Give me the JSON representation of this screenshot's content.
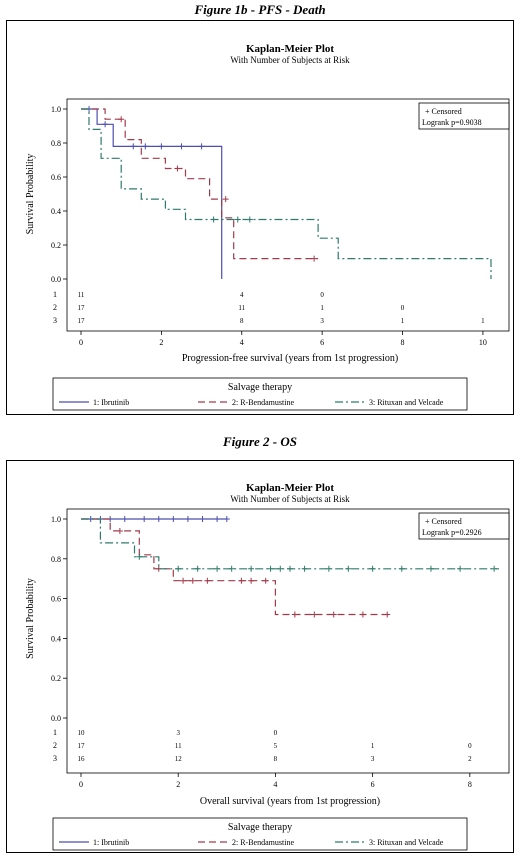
{
  "chart_data": [
    {
      "type": "line",
      "figure_caption": "Figure 1b - PFS - Death",
      "title": "Kaplan-Meier Plot",
      "subtitle": "With Number of Subjects at Risk",
      "xlabel": "Progression-free survival (years from 1st progression)",
      "ylabel": "Survival Probability",
      "xlim": [
        0,
        10.4
      ],
      "ylim": [
        0,
        1.0
      ],
      "xticks": [
        "0",
        "2",
        "4",
        "6",
        "8",
        "10"
      ],
      "yticks": [
        "0.0",
        "0.2",
        "0.4",
        "0.6",
        "0.8",
        "1.0"
      ],
      "censored_label": "+ Censored",
      "logrank_label": "Logrank p=0.9038",
      "legend_title": "Salvage therapy",
      "risk_times": [
        0,
        4,
        6,
        8,
        10
      ],
      "risk_table": [
        {
          "id": "1",
          "counts": [
            "11",
            "4",
            "0",
            "",
            ""
          ]
        },
        {
          "id": "2",
          "counts": [
            "17",
            "11",
            "1",
            "0",
            ""
          ]
        },
        {
          "id": "3",
          "counts": [
            "17",
            "8",
            "3",
            "1",
            "1"
          ]
        }
      ],
      "series": [
        {
          "name": "1: Ibrutinib",
          "color": "#4b4fb0",
          "dash": "solid",
          "x": [
            0,
            0.4,
            0.4,
            0.8,
            0.8,
            3.5,
            3.5
          ],
          "y": [
            1.0,
            1.0,
            0.91,
            0.91,
            0.78,
            0.78,
            0.0
          ],
          "censor_x": [
            0.2,
            0.6,
            1.3,
            1.6,
            2.0,
            2.5,
            3.0
          ],
          "censor_y": [
            1.0,
            0.91,
            0.78,
            0.78,
            0.78,
            0.78,
            0.78
          ]
        },
        {
          "name": "2: R-Bendamustine",
          "color": "#a33a4a",
          "dash": "long",
          "x": [
            0,
            0.6,
            0.6,
            1.1,
            1.1,
            1.5,
            1.5,
            2.1,
            2.1,
            2.6,
            2.6,
            3.2,
            3.2,
            3.5,
            3.5,
            3.8,
            3.8,
            5.9
          ],
          "y": [
            1.0,
            1.0,
            0.94,
            0.94,
            0.82,
            0.82,
            0.71,
            0.71,
            0.65,
            0.65,
            0.59,
            0.59,
            0.47,
            0.47,
            0.36,
            0.36,
            0.12,
            0.12
          ],
          "censor_x": [
            1.0,
            2.4,
            3.6,
            5.8
          ],
          "censor_y": [
            0.94,
            0.65,
            0.47,
            0.12
          ]
        },
        {
          "name": "3: Rituxan and Velcade",
          "color": "#2f7a6a",
          "dash": "dashdot",
          "x": [
            0,
            0.2,
            0.2,
            0.5,
            0.5,
            1.0,
            1.0,
            1.5,
            1.5,
            2.1,
            2.1,
            2.6,
            2.6,
            5.9,
            5.9,
            6.4,
            6.4,
            10.2,
            10.2
          ],
          "y": [
            1.0,
            1.0,
            0.88,
            0.88,
            0.71,
            0.71,
            0.53,
            0.53,
            0.47,
            0.47,
            0.41,
            0.41,
            0.35,
            0.35,
            0.24,
            0.24,
            0.12,
            0.12,
            0.0
          ],
          "censor_x": [
            3.3,
            3.9,
            4.2
          ],
          "censor_y": [
            0.35,
            0.35,
            0.35
          ]
        }
      ]
    },
    {
      "type": "line",
      "figure_caption": "Figure 2 - OS",
      "title": "Kaplan-Meier Plot",
      "subtitle": "With Number of Subjects at Risk",
      "xlabel": "Overall survival (years from 1st progression)",
      "ylabel": "Survival Probability",
      "xlim": [
        0,
        8.6
      ],
      "ylim": [
        0,
        1.0
      ],
      "xticks": [
        "0",
        "2",
        "4",
        "6",
        "8"
      ],
      "yticks": [
        "0.0",
        "0.2",
        "0.4",
        "0.6",
        "0.8",
        "1.0"
      ],
      "censored_label": "+ Censored",
      "logrank_label": "Logrank p=0.2926",
      "legend_title": "Salvage therapy",
      "risk_times": [
        0,
        2,
        4,
        6,
        8
      ],
      "risk_table": [
        {
          "id": "1",
          "counts": [
            "10",
            "3",
            "0",
            "",
            ""
          ]
        },
        {
          "id": "2",
          "counts": [
            "17",
            "11",
            "5",
            "1",
            "0"
          ]
        },
        {
          "id": "3",
          "counts": [
            "16",
            "12",
            "8",
            "3",
            "2"
          ]
        }
      ],
      "series": [
        {
          "name": "1: Ibrutinib",
          "color": "#4b4fb0",
          "dash": "solid",
          "x": [
            0,
            3.0
          ],
          "y": [
            1.0,
            1.0
          ],
          "censor_x": [
            0.2,
            0.4,
            0.6,
            0.9,
            1.3,
            1.6,
            1.9,
            2.2,
            2.5,
            2.8,
            3.0
          ],
          "censor_y": [
            1.0,
            1.0,
            1.0,
            1.0,
            1.0,
            1.0,
            1.0,
            1.0,
            1.0,
            1.0,
            1.0
          ]
        },
        {
          "name": "2: R-Bendamustine",
          "color": "#a33a4a",
          "dash": "long",
          "x": [
            0,
            0.6,
            0.6,
            1.2,
            1.2,
            1.5,
            1.5,
            1.9,
            1.9,
            4.0,
            4.0,
            6.4
          ],
          "y": [
            1.0,
            1.0,
            0.94,
            0.94,
            0.82,
            0.82,
            0.75,
            0.75,
            0.69,
            0.69,
            0.52,
            0.52
          ],
          "censor_x": [
            0.8,
            1.6,
            2.1,
            2.3,
            2.6,
            3.3,
            3.5,
            3.8,
            4.4,
            4.8,
            5.2,
            5.8,
            6.3
          ],
          "censor_y": [
            0.94,
            0.75,
            0.69,
            0.69,
            0.69,
            0.69,
            0.69,
            0.69,
            0.52,
            0.52,
            0.52,
            0.52,
            0.52
          ]
        },
        {
          "name": "3: Rituxan and Velcade",
          "color": "#2f7a6a",
          "dash": "dashdot",
          "x": [
            0,
            0.4,
            0.4,
            1.1,
            1.1,
            1.6,
            1.6,
            8.6
          ],
          "y": [
            1.0,
            1.0,
            0.88,
            0.88,
            0.81,
            0.81,
            0.75,
            0.75
          ],
          "censor_x": [
            1.2,
            2.0,
            2.4,
            2.8,
            3.1,
            3.5,
            3.9,
            4.1,
            4.3,
            4.6,
            5.1,
            5.5,
            6.0,
            6.6,
            7.2,
            7.8,
            8.5
          ],
          "censor_y": [
            0.81,
            0.75,
            0.75,
            0.75,
            0.75,
            0.75,
            0.75,
            0.75,
            0.75,
            0.75,
            0.75,
            0.75,
            0.75,
            0.75,
            0.75,
            0.75,
            0.75
          ]
        }
      ]
    }
  ]
}
